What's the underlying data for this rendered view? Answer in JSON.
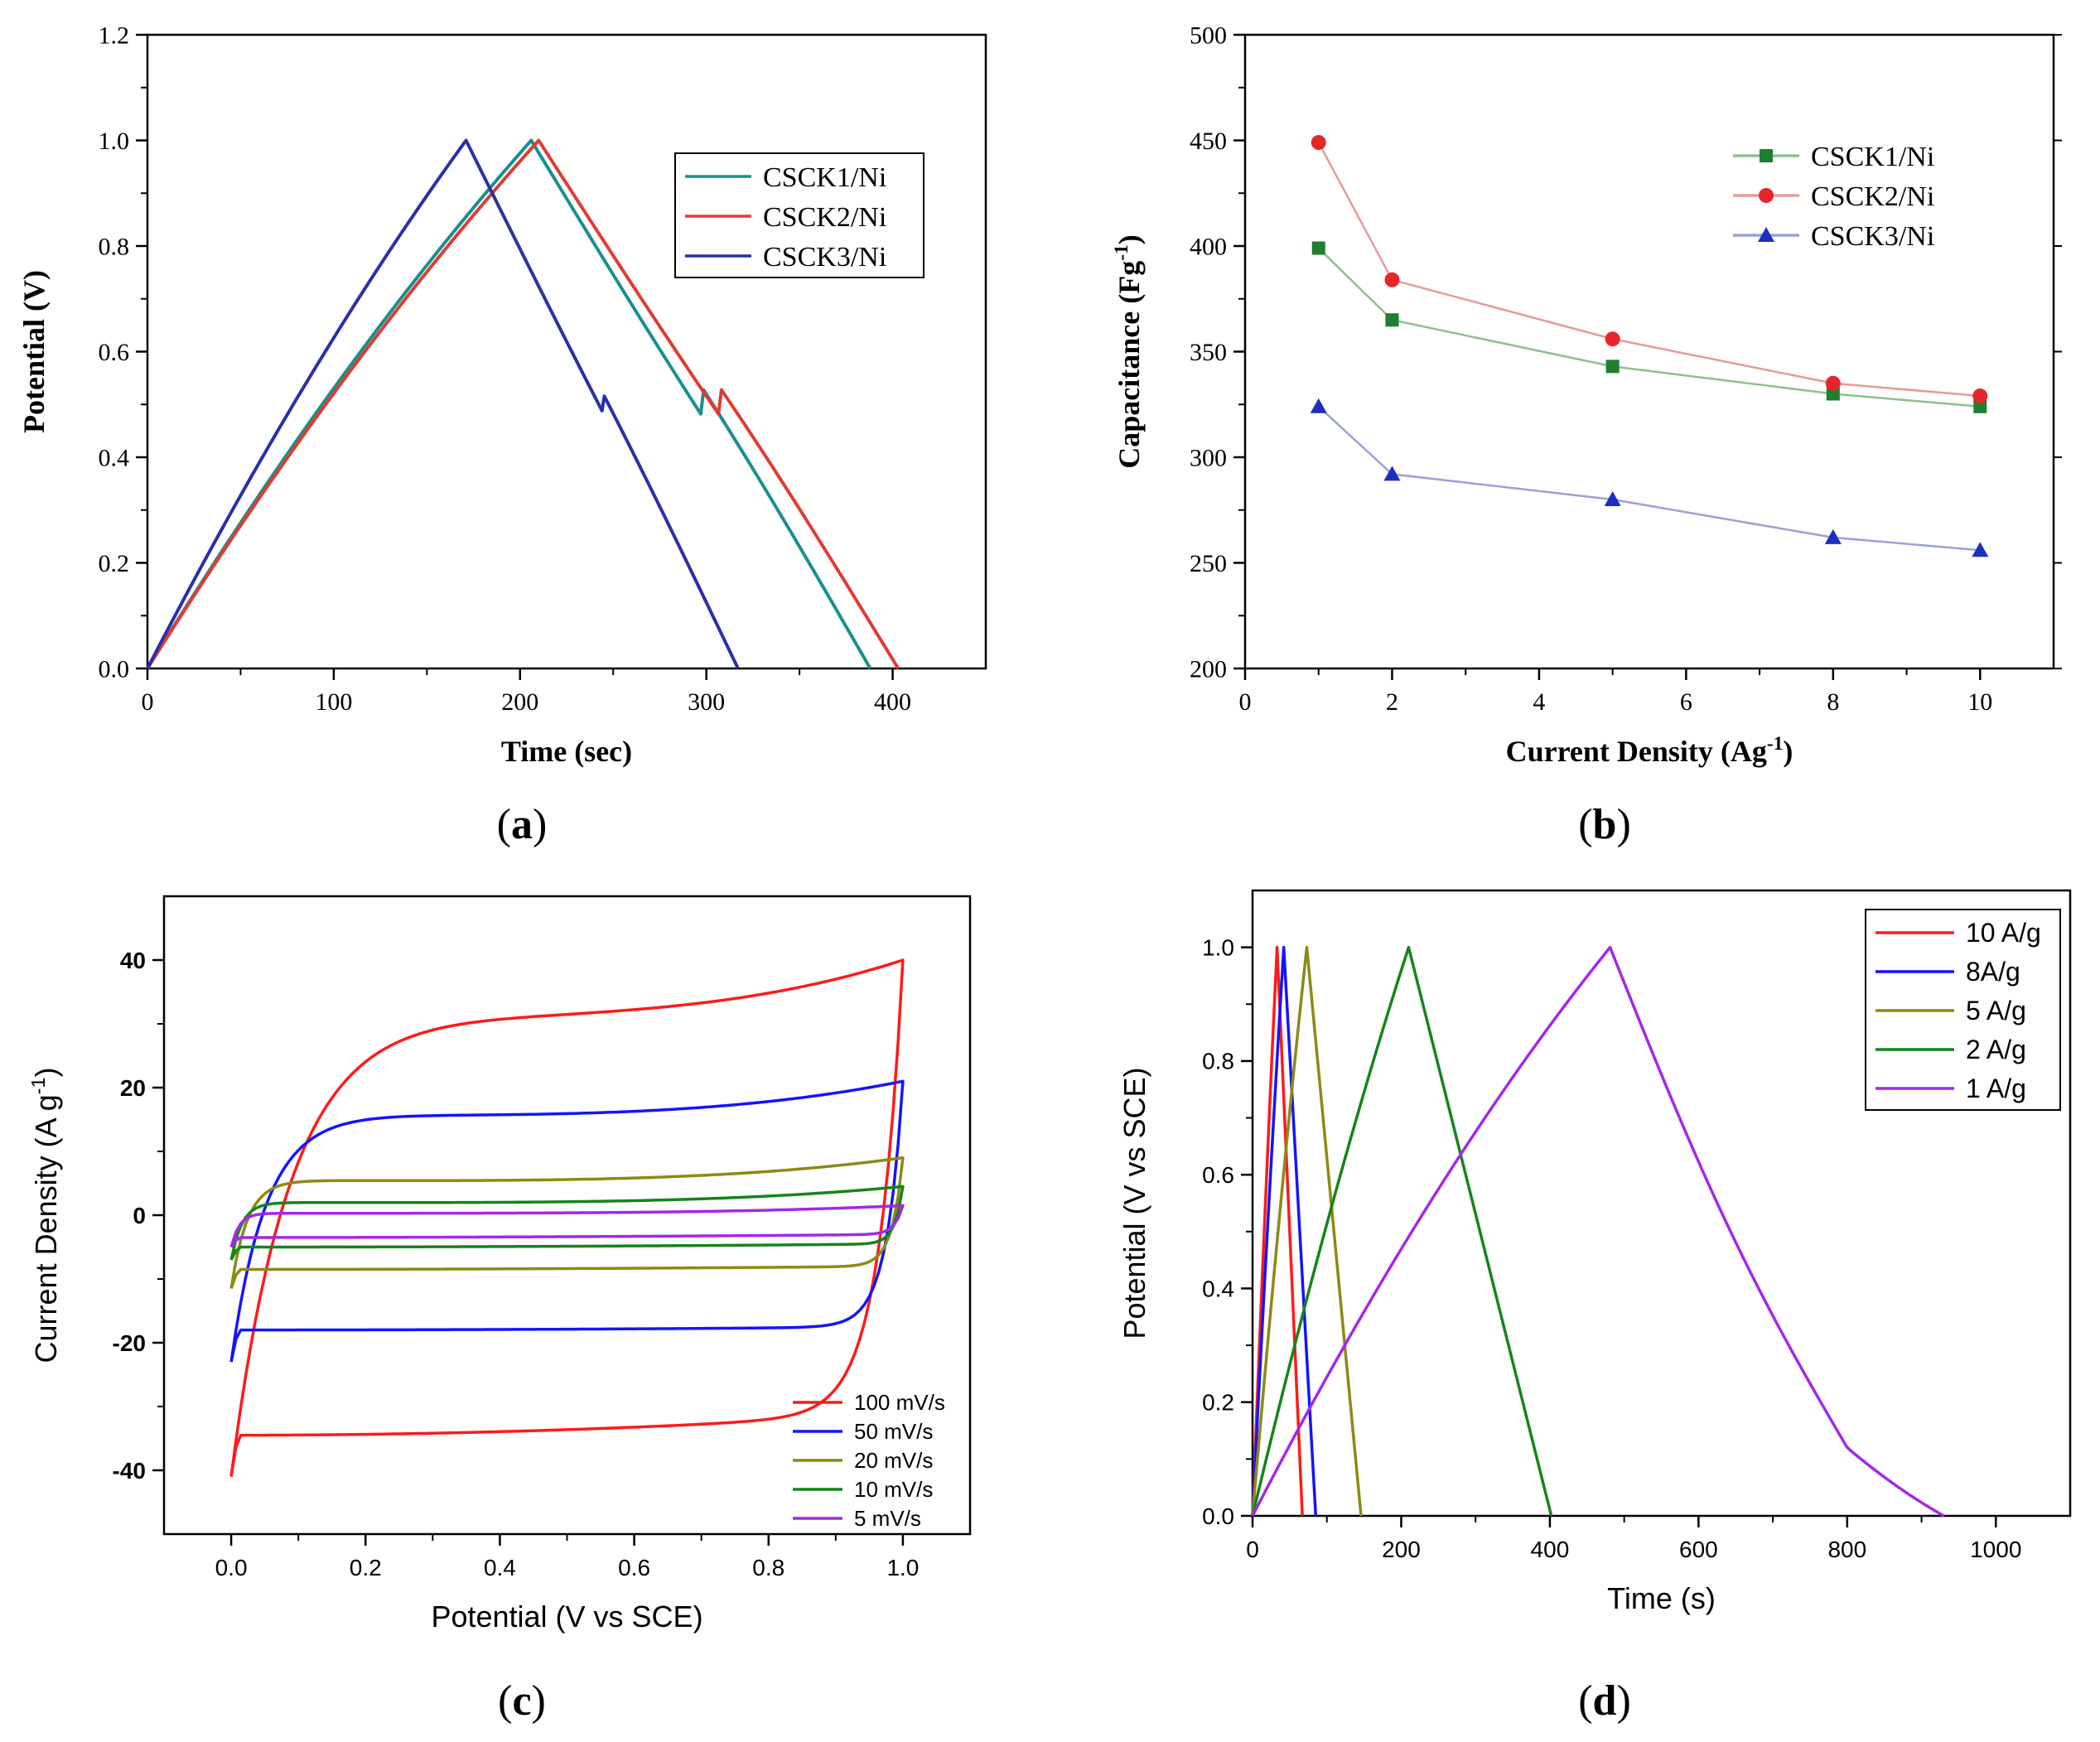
{
  "panel_labels": [
    "(a)",
    "(b)",
    "(c)",
    "(d)"
  ],
  "chart_data": [
    {
      "panel": "a",
      "type": "line",
      "title": "",
      "xlabel": "Time (sec)",
      "ylabel": "Potential (V)",
      "xlim": [
        0,
        450
      ],
      "ylim": [
        0,
        1.2
      ],
      "xticks": [
        0,
        100,
        200,
        300,
        400
      ],
      "yticks": [
        0.0,
        0.2,
        0.4,
        0.6,
        0.8,
        1.0,
        1.2
      ],
      "xtick_labels": [
        "0",
        "100",
        "200",
        "300",
        "400"
      ],
      "ytick_labels": [
        "0.0",
        "0.2",
        "0.4",
        "0.6",
        "0.8",
        "1.0",
        "1.2"
      ],
      "legend_position": "top-right",
      "series": [
        {
          "name": "CSCK1/Ni",
          "color": "#1a8f8f",
          "peak_time": 206,
          "end_time": 388,
          "curvature": 0.18,
          "discharge_tail": 0.09
        },
        {
          "name": "CSCK2/Ni",
          "color": "#e03c31",
          "peak_time": 210,
          "end_time": 403,
          "curvature": 0.18,
          "discharge_tail": 0.09
        },
        {
          "name": "CSCK3/Ni",
          "color": "#2b2fa8",
          "peak_time": 171,
          "end_time": 317,
          "curvature": 0.17,
          "discharge_tail": 0.06
        }
      ]
    },
    {
      "panel": "b",
      "type": "line",
      "title": "",
      "xlabel": "Current Density (Ag",
      "xlabel_sup": "-1",
      "xlabel_end": ")",
      "ylabel": "Capacitance (Fg",
      "ylabel_sup": "-1",
      "ylabel_end": ")",
      "xlim": [
        0,
        11
      ],
      "ylim": [
        200,
        500
      ],
      "xticks": [
        0,
        2,
        4,
        6,
        8,
        10
      ],
      "yticks": [
        200,
        250,
        300,
        350,
        400,
        450,
        500
      ],
      "xtick_labels": [
        "0",
        "2",
        "4",
        "6",
        "8",
        "10"
      ],
      "ytick_labels": [
        "200",
        "250",
        "300",
        "350",
        "400",
        "450",
        "500"
      ],
      "legend_position": "top-right",
      "x": [
        1,
        2,
        5,
        8,
        10
      ],
      "series": [
        {
          "name": "CSCK1/Ni",
          "color": "#1e7f2e",
          "line_color": "#8fbf8f",
          "marker": "square",
          "values": [
            399,
            365,
            343,
            330,
            324
          ]
        },
        {
          "name": "CSCK2/Ni",
          "color": "#e8262a",
          "line_color": "#e49a9a",
          "marker": "circle",
          "values": [
            449,
            384,
            356,
            335,
            329
          ]
        },
        {
          "name": "CSCK3/Ni",
          "color": "#1c2fc0",
          "line_color": "#9aa0d8",
          "marker": "triangle",
          "values": [
            324,
            292,
            280,
            262,
            256
          ]
        }
      ]
    },
    {
      "panel": "c",
      "type": "line",
      "title": "",
      "xlabel": "Potential (V vs SCE)",
      "ylabel": "Current Density (A g",
      "ylabel_sup": "-1",
      "ylabel_end": ")",
      "xlim": [
        -0.1,
        1.1
      ],
      "ylim": [
        -50,
        50
      ],
      "xticks": [
        0.0,
        0.2,
        0.4,
        0.6,
        0.8,
        1.0
      ],
      "yticks": [
        -40,
        -20,
        0,
        20,
        40
      ],
      "xtick_labels": [
        "0.0",
        "0.2",
        "0.4",
        "0.6",
        "0.8",
        "1.0"
      ],
      "ytick_labels": [
        "-40",
        "-20",
        "0",
        "20",
        "40"
      ],
      "legend_position": "bottom-right",
      "series": [
        {
          "name": "100 mV/s",
          "color": "#ff1a1a",
          "start_low": -41,
          "upper_plateau": 32,
          "upper_end": 40,
          "lower_plateau": -34.5,
          "lower_knee": -31,
          "rise_x": 0.22,
          "return_x": 0.93
        },
        {
          "name": "50 mV/s",
          "color": "#1414ff",
          "start_low": -23,
          "upper_plateau": 16,
          "upper_end": 21,
          "lower_plateau": -18,
          "lower_knee": -17.5,
          "rise_x": 0.13,
          "return_x": 0.96
        },
        {
          "name": "20 mV/s",
          "color": "#8c8a14",
          "start_low": -11.5,
          "upper_plateau": 5.5,
          "upper_end": 9,
          "lower_plateau": -8.5,
          "lower_knee": -8,
          "rise_x": 0.06,
          "return_x": 0.98
        },
        {
          "name": "10 mV/s",
          "color": "#16841a",
          "start_low": -7,
          "upper_plateau": 2,
          "upper_end": 4.5,
          "lower_plateau": -5,
          "lower_knee": -4.5,
          "rise_x": 0.04,
          "return_x": 0.99
        },
        {
          "name": "5 mV/s",
          "color": "#a328e8",
          "start_low": -5,
          "upper_plateau": 0.3,
          "upper_end": 1.5,
          "lower_plateau": -3.5,
          "lower_knee": -3,
          "rise_x": 0.03,
          "return_x": 0.99
        }
      ]
    },
    {
      "panel": "d",
      "type": "line",
      "title": "",
      "xlabel": "Time (s)",
      "ylabel": "Potential (V vs SCE)",
      "xlim": [
        0,
        1100
      ],
      "ylim": [
        0,
        1.1
      ],
      "xticks": [
        0,
        200,
        400,
        600,
        800,
        1000
      ],
      "yticks": [
        0.0,
        0.2,
        0.4,
        0.6,
        0.8,
        1.0
      ],
      "xtick_labels": [
        "0",
        "200",
        "400",
        "600",
        "800",
        "1000"
      ],
      "ytick_labels": [
        "0.0",
        "0.2",
        "0.4",
        "0.6",
        "0.8",
        "1.0"
      ],
      "legend_position": "top-right",
      "series": [
        {
          "name": "10 A/g",
          "color": "#ff1a1a",
          "peak_time": 33,
          "end_time": 67,
          "curvature": 0.1
        },
        {
          "name": "8A/g",
          "color": "#1414ff",
          "peak_time": 42,
          "end_time": 85,
          "curvature": 0.1
        },
        {
          "name": "5 A/g",
          "color": "#8c8a14",
          "peak_time": 73,
          "end_time": 146,
          "curvature": 0.12
        },
        {
          "name": "2 A/g",
          "color": "#16841a",
          "peak_time": 210,
          "end_time": 402,
          "curvature": 0.15
        },
        {
          "name": "1 A/g",
          "color": "#a328e8",
          "peak_time": 481,
          "end_time": 930,
          "curvature": 0.22,
          "discharge_knee": 800
        }
      ]
    }
  ]
}
